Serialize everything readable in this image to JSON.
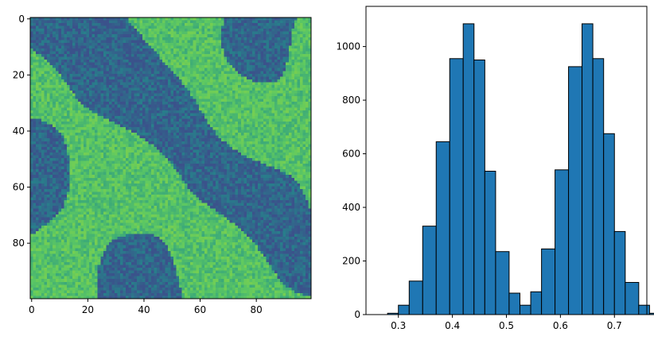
{
  "chart_data": [
    {
      "type": "heatmap",
      "title": "",
      "xlabel": "",
      "ylabel": "",
      "xlim": [
        0,
        99
      ],
      "ylim": [
        99,
        0
      ],
      "grid_size": [
        100,
        100
      ],
      "xticks": [
        "0",
        "20",
        "40",
        "60",
        "80"
      ],
      "yticks": [
        "0",
        "20",
        "40",
        "60",
        "80"
      ],
      "colormap": [
        "#3b528b",
        "#21918c",
        "#5ec962",
        "#b5de2b"
      ],
      "low_phase_color": "#3b528b",
      "high_phase_color": "#5ec962"
    },
    {
      "type": "bar",
      "title": "",
      "xlabel": "",
      "ylabel": "",
      "bar_color": "#1f77b4",
      "edge_color": "#000000",
      "bins": [
        {
          "x0": 0.26,
          "x1": 0.28,
          "value": 0
        },
        {
          "x0": 0.28,
          "x1": 0.3,
          "value": 5
        },
        {
          "x0": 0.3,
          "x1": 0.32,
          "value": 35
        },
        {
          "x0": 0.32,
          "x1": 0.345,
          "value": 125
        },
        {
          "x0": 0.345,
          "x1": 0.37,
          "value": 330
        },
        {
          "x0": 0.37,
          "x1": 0.395,
          "value": 645
        },
        {
          "x0": 0.395,
          "x1": 0.42,
          "value": 955
        },
        {
          "x0": 0.42,
          "x1": 0.44,
          "value": 1085
        },
        {
          "x0": 0.44,
          "x1": 0.46,
          "value": 950
        },
        {
          "x0": 0.46,
          "x1": 0.48,
          "value": 535
        },
        {
          "x0": 0.48,
          "x1": 0.505,
          "value": 235
        },
        {
          "x0": 0.505,
          "x1": 0.525,
          "value": 80
        },
        {
          "x0": 0.525,
          "x1": 0.545,
          "value": 35
        },
        {
          "x0": 0.545,
          "x1": 0.565,
          "value": 85
        },
        {
          "x0": 0.565,
          "x1": 0.59,
          "value": 245
        },
        {
          "x0": 0.59,
          "x1": 0.615,
          "value": 540
        },
        {
          "x0": 0.615,
          "x1": 0.64,
          "value": 925
        },
        {
          "x0": 0.64,
          "x1": 0.66,
          "value": 1085
        },
        {
          "x0": 0.66,
          "x1": 0.68,
          "value": 955
        },
        {
          "x0": 0.68,
          "x1": 0.7,
          "value": 675
        },
        {
          "x0": 0.7,
          "x1": 0.72,
          "value": 310
        },
        {
          "x0": 0.72,
          "x1": 0.745,
          "value": 120
        },
        {
          "x0": 0.745,
          "x1": 0.765,
          "value": 35
        },
        {
          "x0": 0.765,
          "x1": 0.785,
          "value": 5
        }
      ],
      "xlim": [
        0.24,
        0.76
      ],
      "ylim": [
        0,
        1150
      ],
      "xticks": [
        0.3,
        0.4,
        0.5,
        0.6,
        0.7
      ],
      "xtick_labels": [
        "0.3",
        "0.4",
        "0.5",
        "0.6",
        "0.7"
      ],
      "yticks": [
        0,
        200,
        400,
        600,
        800,
        1000
      ],
      "ytick_labels": [
        "0",
        "200",
        "400",
        "600",
        "800",
        "1000"
      ]
    }
  ]
}
